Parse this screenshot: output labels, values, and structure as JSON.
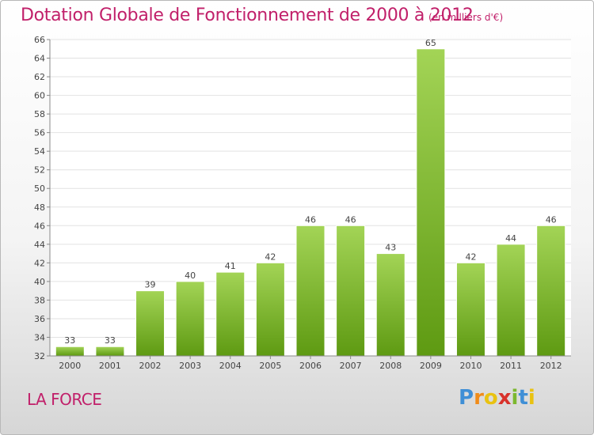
{
  "header": {
    "title": "Dotation Globale de Fonctionnement de 2000 à 2012",
    "subtitle": "(en milliers d'€)"
  },
  "footer": {
    "town": "LA FORCE",
    "logo": "Proxiti"
  },
  "colors": {
    "title": "#c1206a",
    "bar_top": "#a3d456",
    "bar_bottom": "#5e9a12"
  },
  "chart_data": {
    "type": "bar",
    "categories": [
      "2000",
      "2001",
      "2002",
      "2003",
      "2004",
      "2005",
      "2006",
      "2007",
      "2008",
      "2009",
      "2010",
      "2011",
      "2012"
    ],
    "values": [
      33,
      33,
      39,
      40,
      41,
      42,
      46,
      46,
      43,
      65,
      42,
      44,
      46
    ],
    "title": "Dotation Globale de Fonctionnement de 2000 à 2012",
    "subtitle": "(en milliers d'€)",
    "xlabel": "",
    "ylabel": "",
    "ylim": [
      32,
      66
    ],
    "yticks": [
      32,
      34,
      36,
      38,
      40,
      42,
      44,
      46,
      48,
      50,
      52,
      54,
      56,
      58,
      60,
      62,
      64,
      66
    ],
    "grid": true
  }
}
